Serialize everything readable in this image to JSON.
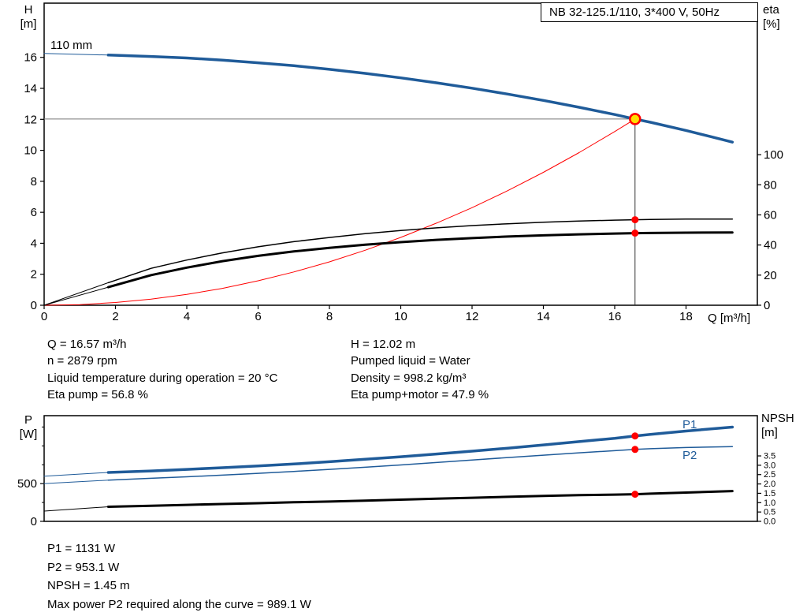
{
  "colors": {
    "blue": "#1f5b99",
    "red": "#ff0000",
    "black": "#000000",
    "yellow": "#ffdf00",
    "gray": "#777777"
  },
  "info": {
    "left": [
      "Q = 16.57 m³/h",
      "n = 2879 rpm",
      "Liquid temperature during operation = 20 °C",
      "Eta pump = 56.8 %"
    ],
    "right": [
      "H = 12.02 m",
      "Pumped liquid = Water",
      "Density = 998.2 kg/m³",
      "Eta pump+motor = 47.9 %"
    ]
  },
  "footer": [
    "P1 = 1131 W",
    "P2 = 953.1 W",
    "NPSH = 1.45 m",
    "Max power P2 required along the curve = 989.1 W"
  ],
  "chart_data": [
    {
      "type": "line",
      "name": "hq-eta-chart",
      "title": "NB 32-125.1/110, 3*400 V, 50Hz",
      "impeller_label": "110 mm",
      "axes": {
        "x": {
          "label": "Q [m³/h]",
          "min": 0,
          "max": 20,
          "ticks": [
            0,
            2,
            4,
            6,
            8,
            10,
            12,
            14,
            16,
            18
          ]
        },
        "y_left": {
          "label": [
            "H",
            "[m]"
          ],
          "min": 0,
          "max": 19.5,
          "ticks": [
            0,
            2,
            4,
            6,
            8,
            10,
            12,
            14,
            16
          ]
        },
        "y_right": {
          "label": [
            "eta",
            "[%]"
          ],
          "ticks": [
            0,
            20,
            40,
            60,
            80,
            100
          ],
          "unit_in_left": 0.0972
        }
      },
      "duty_point": {
        "q": 16.57,
        "h": 12.02
      },
      "markers": [
        {
          "q": 16.57,
          "v": 56.8,
          "axis": "right"
        },
        {
          "q": 16.57,
          "v": 47.9,
          "axis": "right"
        }
      ],
      "series": [
        {
          "name": "head-curve-lead",
          "color": "blue",
          "width": 1,
          "axis": "left",
          "points": [
            [
              0,
              16.25
            ],
            [
              1.8,
              16.15
            ]
          ]
        },
        {
          "name": "head-curve",
          "color": "blue",
          "width": 3.5,
          "axis": "left",
          "points": [
            [
              1.8,
              16.15
            ],
            [
              3,
              16.06
            ],
            [
              4,
              15.96
            ],
            [
              5,
              15.82
            ],
            [
              6,
              15.65
            ],
            [
              7,
              15.46
            ],
            [
              8,
              15.23
            ],
            [
              9,
              14.97
            ],
            [
              10,
              14.68
            ],
            [
              11,
              14.36
            ],
            [
              12,
              14.01
            ],
            [
              13,
              13.63
            ],
            [
              14,
              13.22
            ],
            [
              15,
              12.78
            ],
            [
              16,
              12.31
            ],
            [
              16.57,
              12.02
            ],
            [
              17,
              11.81
            ],
            [
              18,
              11.28
            ],
            [
              18.7,
              10.88
            ],
            [
              19.3,
              10.53
            ]
          ]
        },
        {
          "name": "system-curve",
          "color": "red",
          "width": 1,
          "axis": "left",
          "points": [
            [
              0,
              0
            ],
            [
              1,
              0.04
            ],
            [
              2,
              0.18
            ],
            [
              3,
              0.39
            ],
            [
              4,
              0.7
            ],
            [
              5,
              1.09
            ],
            [
              6,
              1.58
            ],
            [
              7,
              2.15
            ],
            [
              8,
              2.8
            ],
            [
              9,
              3.55
            ],
            [
              10,
              4.38
            ],
            [
              11,
              5.3
            ],
            [
              12,
              6.3
            ],
            [
              13,
              7.4
            ],
            [
              14,
              8.58
            ],
            [
              15,
              9.85
            ],
            [
              16,
              11.21
            ],
            [
              16.57,
              12.02
            ]
          ]
        },
        {
          "name": "eta-pump-lead",
          "color": "black",
          "width": 1,
          "axis": "right",
          "points": [
            [
              0,
              0
            ],
            [
              1.8,
              15
            ]
          ]
        },
        {
          "name": "eta-pump-curve",
          "color": "black",
          "width": 1.5,
          "axis": "right",
          "points": [
            [
              1.8,
              15
            ],
            [
              3,
              24.5
            ],
            [
              4,
              30
            ],
            [
              5,
              34.8
            ],
            [
              6,
              38.8
            ],
            [
              7,
              42.2
            ],
            [
              8,
              45
            ],
            [
              9,
              47.5
            ],
            [
              10,
              49.6
            ],
            [
              11,
              51.4
            ],
            [
              12,
              52.9
            ],
            [
              13,
              54.1
            ],
            [
              14,
              55.1
            ],
            [
              15,
              55.9
            ],
            [
              16,
              56.5
            ],
            [
              16.57,
              56.8
            ],
            [
              17,
              57
            ],
            [
              18,
              57.2
            ],
            [
              19.3,
              57.2
            ]
          ]
        },
        {
          "name": "eta-pump-motor-lead",
          "color": "black",
          "width": 1,
          "axis": "right",
          "points": [
            [
              0,
              0
            ],
            [
              1.8,
              12
            ]
          ]
        },
        {
          "name": "eta-pump-motor-curve",
          "color": "black",
          "width": 3,
          "axis": "right",
          "points": [
            [
              1.8,
              12
            ],
            [
              3,
              20
            ],
            [
              4,
              25
            ],
            [
              5,
              29.3
            ],
            [
              6,
              32.8
            ],
            [
              7,
              35.7
            ],
            [
              8,
              38.1
            ],
            [
              9,
              40.2
            ],
            [
              10,
              41.9
            ],
            [
              11,
              43.4
            ],
            [
              12,
              44.6
            ],
            [
              13,
              45.6
            ],
            [
              14,
              46.4
            ],
            [
              15,
              47.1
            ],
            [
              16,
              47.6
            ],
            [
              16.57,
              47.9
            ],
            [
              17,
              48
            ],
            [
              18,
              48.2
            ],
            [
              19.3,
              48.3
            ]
          ]
        }
      ]
    },
    {
      "type": "line",
      "name": "power-npsh-chart",
      "axes": {
        "x": {
          "min": 0,
          "max": 20,
          "ticks": []
        },
        "y_left": {
          "label": [
            "P",
            "[W]"
          ],
          "min": 0,
          "max": 1400,
          "ticks": [
            0,
            500
          ],
          "minor_ticks": [
            250,
            750,
            1000,
            1250
          ]
        },
        "y_right": {
          "label": [
            "NPSH",
            "[m]"
          ],
          "ticks": [
            0,
            0.5,
            1,
            1.5,
            2,
            2.5,
            3,
            3.5
          ],
          "unit_in_left": 247.7,
          "decimals": 1
        }
      },
      "series_labels": [
        {
          "text": "P1"
        },
        {
          "text": "P2"
        }
      ],
      "markers": [
        {
          "q": 16.57,
          "v": 1131,
          "axis": "left"
        },
        {
          "q": 16.57,
          "v": 953.1,
          "axis": "left"
        },
        {
          "q": 16.57,
          "v": 1.45,
          "axis": "right"
        }
      ],
      "series": [
        {
          "name": "p1-lead",
          "color": "blue",
          "width": 1,
          "axis": "left",
          "points": [
            [
              0,
              598
            ],
            [
              1.8,
              648
            ]
          ]
        },
        {
          "name": "p1-curve",
          "color": "blue",
          "width": 3.5,
          "axis": "left",
          "points": [
            [
              1.8,
              648
            ],
            [
              3,
              668
            ],
            [
              4,
              688
            ],
            [
              5,
              710
            ],
            [
              6,
              734
            ],
            [
              7,
              760
            ],
            [
              8,
              790
            ],
            [
              9,
              822
            ],
            [
              10,
              856
            ],
            [
              11,
              892
            ],
            [
              12,
              930
            ],
            [
              13,
              970
            ],
            [
              14,
              1012
            ],
            [
              15,
              1056
            ],
            [
              16,
              1100
            ],
            [
              16.57,
              1131
            ],
            [
              17,
              1152
            ],
            [
              18,
              1196
            ],
            [
              19.3,
              1248
            ]
          ]
        },
        {
          "name": "p2-lead",
          "color": "blue",
          "width": 1,
          "axis": "left",
          "points": [
            [
              0,
              500
            ],
            [
              1.8,
              545
            ]
          ]
        },
        {
          "name": "p2-curve",
          "color": "blue",
          "width": 1.5,
          "axis": "left",
          "points": [
            [
              1.8,
              545
            ],
            [
              3,
              570
            ],
            [
              4,
              590
            ],
            [
              5,
              612
            ],
            [
              6,
              636
            ],
            [
              7,
              661
            ],
            [
              8,
              688
            ],
            [
              9,
              717
            ],
            [
              10,
              747
            ],
            [
              11,
              779
            ],
            [
              12,
              812
            ],
            [
              13,
              845
            ],
            [
              14,
              877
            ],
            [
              15,
              908
            ],
            [
              16,
              936
            ],
            [
              16.57,
              953
            ],
            [
              17,
              962
            ],
            [
              18,
              978
            ],
            [
              19.3,
              989
            ]
          ]
        },
        {
          "name": "npsh-lead",
          "color": "black",
          "width": 1,
          "axis": "right",
          "points": [
            [
              0,
              0.55
            ],
            [
              1.8,
              0.78
            ]
          ]
        },
        {
          "name": "npsh-curve",
          "color": "black",
          "width": 3,
          "axis": "right",
          "points": [
            [
              1.8,
              0.78
            ],
            [
              3,
              0.83
            ],
            [
              4,
              0.88
            ],
            [
              5,
              0.93
            ],
            [
              6,
              0.97
            ],
            [
              7,
              1.02
            ],
            [
              8,
              1.06
            ],
            [
              9,
              1.11
            ],
            [
              10,
              1.16
            ],
            [
              11,
              1.21
            ],
            [
              12,
              1.26
            ],
            [
              13,
              1.31
            ],
            [
              14,
              1.36
            ],
            [
              15,
              1.4
            ],
            [
              16,
              1.43
            ],
            [
              16.57,
              1.45
            ],
            [
              17,
              1.48
            ],
            [
              18,
              1.54
            ],
            [
              19.3,
              1.62
            ]
          ]
        }
      ]
    }
  ]
}
